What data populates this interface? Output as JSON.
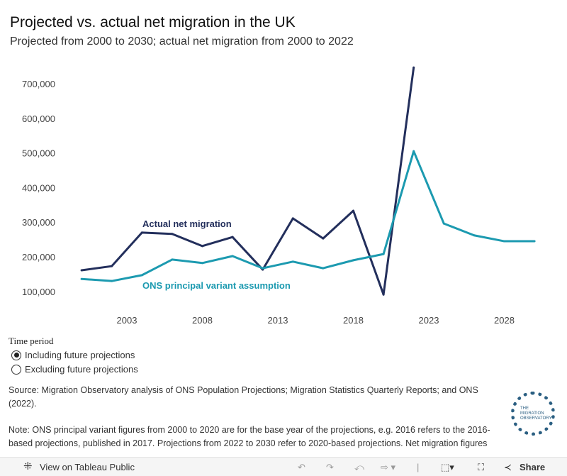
{
  "title": "Projected vs. actual net migration in the UK",
  "subtitle": "Projected from 2000 to 2030; actual net migration from 2000 to 2022",
  "chart_data": {
    "type": "line",
    "title": "Projected vs. actual net migration in the UK",
    "xlabel": "",
    "ylabel": "",
    "xlim": [
      1999.5,
      2030.5
    ],
    "ylim": [
      50000,
      760000
    ],
    "x_ticks": [
      2003,
      2008,
      2013,
      2018,
      2023,
      2028
    ],
    "x_tick_labels": [
      "2003",
      "2008",
      "2013",
      "2018",
      "2023",
      "2028"
    ],
    "y_ticks": [
      100000,
      200000,
      300000,
      400000,
      500000,
      600000,
      700000
    ],
    "y_tick_labels": [
      "100,000",
      "200,000",
      "300,000",
      "400,000",
      "500,000",
      "600,000",
      "700,000"
    ],
    "grid": false,
    "series": [
      {
        "name": "Actual net migration",
        "color": "#232f5c",
        "x": [
          2000,
          2002,
          2004,
          2006,
          2008,
          2010,
          2012,
          2014,
          2016,
          2018,
          2020,
          2022
        ],
        "values": [
          161000,
          173000,
          270000,
          266000,
          231000,
          257000,
          163000,
          311000,
          253000,
          333000,
          91000,
          747000
        ]
      },
      {
        "name": "ONS principal variant assumption",
        "color": "#1c9ab0",
        "x": [
          2000,
          2002,
          2004,
          2006,
          2008,
          2010,
          2012,
          2014,
          2016,
          2018,
          2020,
          2022,
          2024,
          2026,
          2028,
          2030
        ],
        "values": [
          136000,
          130000,
          147000,
          192000,
          182000,
          202000,
          167000,
          186000,
          167000,
          190000,
          208000,
          505000,
          296000,
          262000,
          245000,
          245000
        ]
      }
    ]
  },
  "filter": {
    "label": "Time period",
    "options": [
      {
        "label": "Including future projections",
        "selected": true
      },
      {
        "label": "Excluding future projections",
        "selected": false
      }
    ]
  },
  "source": "Source: Migration Observatory analysis of ONS Population Projections; Migration Statistics Quarterly Reports; and ONS (2022).",
  "note": "Note: ONS principal variant figures from 2000 to 2020 are for the base year of the projections, e.g. 2016 refers to the 2016-based projections, published in 2017. Projections from 2022 to 2030 refer to 2020-based projections. Net migration figures",
  "logo_text": "THE MIGRATION OBSERVATORY",
  "toolbar": {
    "view": "View on Tableau Public",
    "share": "Share"
  }
}
